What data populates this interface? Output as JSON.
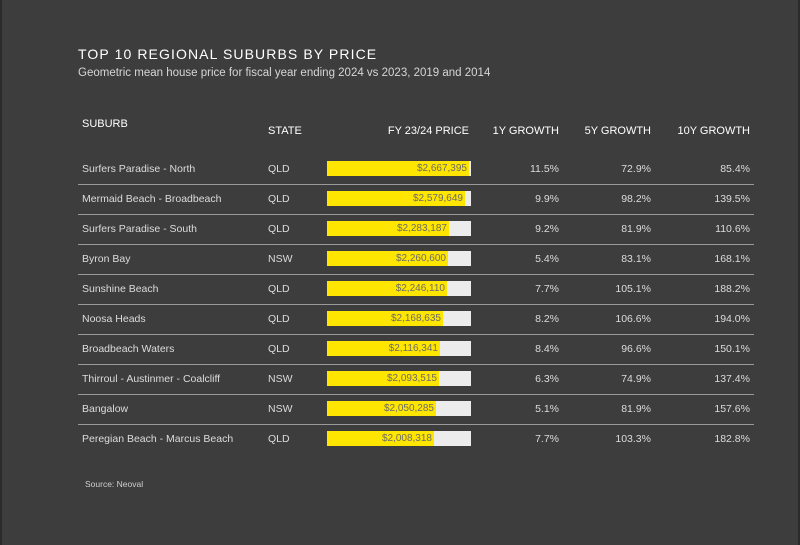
{
  "title": "TOP 10 REGIONAL SUBURBS BY PRICE",
  "subtitle": "Geometric mean house price for fiscal year ending 2024 vs 2023, 2019 and 2014",
  "source": "Source: Neoval",
  "colors": {
    "background": "#3d3d3e",
    "bar": "#ffe600",
    "bar_track": "#ececec",
    "text": "#ffffff"
  },
  "chart_data": {
    "type": "table",
    "columns": [
      "SUBURB",
      "STATE",
      "FY 23/24 PRICE",
      "1Y GROWTH",
      "5Y GROWTH",
      "10Y GROWTH"
    ],
    "price_max": 2700000,
    "rows": [
      {
        "suburb": "Surfers Paradise - North",
        "state": "QLD",
        "price": 2667395,
        "price_label": "$2,667,395",
        "g1": "11.5%",
        "g5": "72.9%",
        "g10": "85.4%"
      },
      {
        "suburb": "Mermaid Beach - Broadbeach",
        "state": "QLD",
        "price": 2579649,
        "price_label": "$2,579,649",
        "g1": "9.9%",
        "g5": "98.2%",
        "g10": "139.5%"
      },
      {
        "suburb": "Surfers Paradise - South",
        "state": "QLD",
        "price": 2283187,
        "price_label": "$2,283,187",
        "g1": "9.2%",
        "g5": "81.9%",
        "g10": "110.6%"
      },
      {
        "suburb": "Byron Bay",
        "state": "NSW",
        "price": 2260600,
        "price_label": "$2,260,600",
        "g1": "5.4%",
        "g5": "83.1%",
        "g10": "168.1%"
      },
      {
        "suburb": "Sunshine Beach",
        "state": "QLD",
        "price": 2246110,
        "price_label": "$2,246,110",
        "g1": "7.7%",
        "g5": "105.1%",
        "g10": "188.2%"
      },
      {
        "suburb": "Noosa Heads",
        "state": "QLD",
        "price": 2168635,
        "price_label": "$2,168,635",
        "g1": "8.2%",
        "g5": "106.6%",
        "g10": "194.0%"
      },
      {
        "suburb": "Broadbeach Waters",
        "state": "QLD",
        "price": 2116341,
        "price_label": "$2,116,341",
        "g1": "8.4%",
        "g5": "96.6%",
        "g10": "150.1%"
      },
      {
        "suburb": "Thirroul - Austinmer - Coalcliff",
        "state": "NSW",
        "price": 2093515,
        "price_label": "$2,093,515",
        "g1": "6.3%",
        "g5": "74.9%",
        "g10": "137.4%"
      },
      {
        "suburb": "Bangalow",
        "state": "NSW",
        "price": 2050285,
        "price_label": "$2,050,285",
        "g1": "5.1%",
        "g5": "81.9%",
        "g10": "157.6%"
      },
      {
        "suburb": "Peregian Beach - Marcus Beach",
        "state": "QLD",
        "price": 2008318,
        "price_label": "$2,008,318",
        "g1": "7.7%",
        "g5": "103.3%",
        "g10": "182.8%"
      }
    ]
  }
}
